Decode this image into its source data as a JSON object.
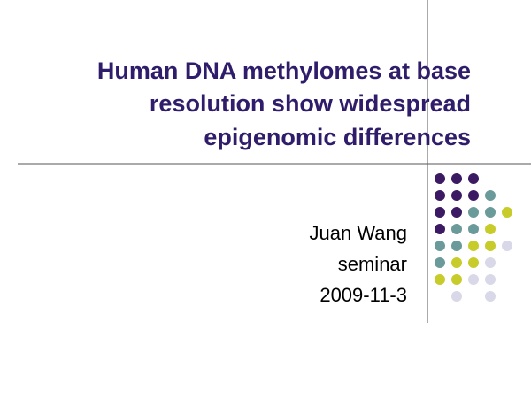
{
  "slide": {
    "title_lines": [
      "Human DNA methylomes at base",
      "resolution show widespread",
      "epigenomic differences"
    ],
    "subtitle_lines": [
      "Juan Wang",
      "seminar",
      "2009-11-3"
    ]
  }
}
